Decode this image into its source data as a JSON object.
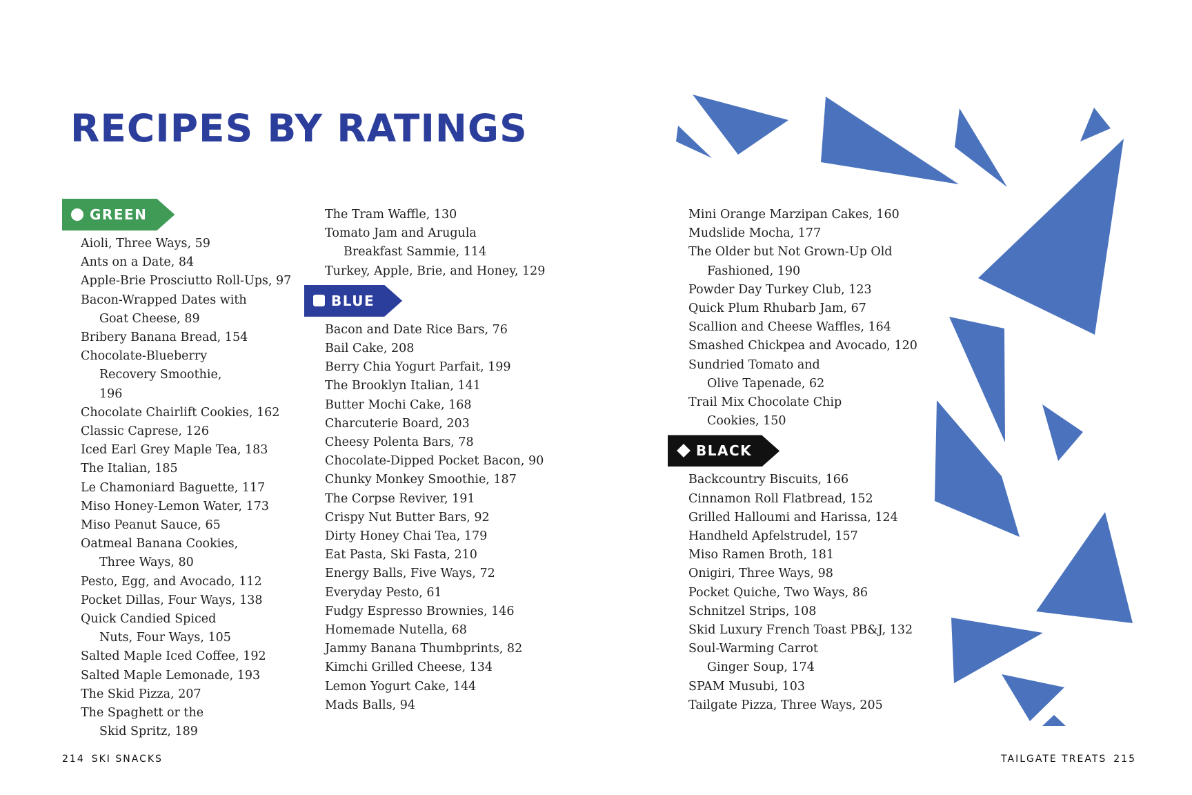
{
  "title": "RECIPES BY RATINGS",
  "accent_colors": {
    "title": "#2c3e9c",
    "green": "#3f9b55",
    "blue": "#2c3e9c",
    "black": "#111111",
    "triangles": "#4a72bd"
  },
  "sections": {
    "green": {
      "label": "GREEN",
      "icon": "circle-icon",
      "items": [
        "Aioli, Three Ways, 59",
        "Ants on a Date, 84",
        "Apple-Brie Prosciutto Roll-Ups, 97",
        "Bacon-Wrapped Dates with Goat Cheese, 89",
        "Bribery Banana Bread, 154",
        "Chocolate-Blueberry Recovery Smoothie, 196",
        "Chocolate Chairlift Cookies, 162",
        "Classic Caprese, 126",
        "Iced Earl Grey Maple Tea, 183",
        "The Italian, 185",
        "Le Chamoniard Baguette, 117",
        "Miso Honey-Lemon Water, 173",
        "Miso Peanut Sauce, 65",
        "Oatmeal Banana Cookies, Three Ways, 80",
        "Pesto, Egg, and Avocado, 112",
        "Pocket Dillas, Four Ways, 138",
        "Quick Candied Spiced Nuts, Four Ways, 105",
        "Salted Maple Iced Coffee, 192",
        "Salted Maple Lemonade, 193",
        "The Skid Pizza, 207",
        "The Spaghett or the Skid Spritz, 189",
        "The Tram Waffle, 130",
        "Tomato Jam and Arugula Breakfast Sammie, 114",
        "Turkey, Apple, Brie, and Honey, 129"
      ]
    },
    "blue": {
      "label": "BLUE",
      "icon": "square-icon",
      "items": [
        "Bacon and Date Rice Bars, 76",
        "Bail Cake, 208",
        "Berry Chia Yogurt Parfait, 199",
        "The Brooklyn Italian, 141",
        "Butter Mochi Cake, 168",
        "Charcuterie Board, 203",
        "Cheesy Polenta Bars, 78",
        "Chocolate-Dipped Pocket Bacon, 90",
        "Chunky Monkey Smoothie, 187",
        "The Corpse Reviver, 191",
        "Crispy Nut Butter Bars, 92",
        "Dirty Honey Chai Tea, 179",
        "Eat Pasta, Ski Fasta, 210",
        "Energy Balls, Five Ways, 72",
        "Everyday Pesto, 61",
        "Fudgy Espresso Brownies, 146",
        "Homemade Nutella, 68",
        "Jammy Banana Thumbprints, 82",
        "Kimchi Grilled Cheese, 134",
        "Lemon Yogurt Cake, 144",
        "Mads Balls, 94",
        "Mini Orange Marzipan Cakes, 160",
        "Mudslide Mocha, 177",
        "The Older but Not Grown-Up Old Fashioned, 190",
        "Powder Day Turkey Club, 123",
        "Quick Plum Rhubarb Jam, 67",
        "Scallion and Cheese Waffles, 164",
        "Smashed Chickpea and Avocado, 120",
        "Sundried Tomato and Olive Tapenade, 62",
        "Trail Mix Chocolate Chip Cookies, 150"
      ]
    },
    "black": {
      "label": "BLACK",
      "icon": "diamond-icon",
      "items": [
        "Backcountry Biscuits, 166",
        "Cinnamon Roll Flatbread, 152",
        "Grilled Halloumi and Harissa, 124",
        "Handheld Apfelstrudel, 157",
        "Miso Ramen Broth, 181",
        "Onigiri, Three Ways, 98",
        "Pocket Quiche, Two Ways, 86",
        "Schnitzel Strips, 108",
        "Skid Luxury French Toast PB&J, 132",
        "Soul-Warming Carrot Ginger Soup, 174",
        "SPAM Musubi, 103",
        "Tailgate Pizza, Three Ways, 205"
      ]
    }
  },
  "footer": {
    "left_page": "214",
    "left_title": "SKI SNACKS",
    "right_title": "TAILGATE TREATS",
    "right_page": "215"
  }
}
